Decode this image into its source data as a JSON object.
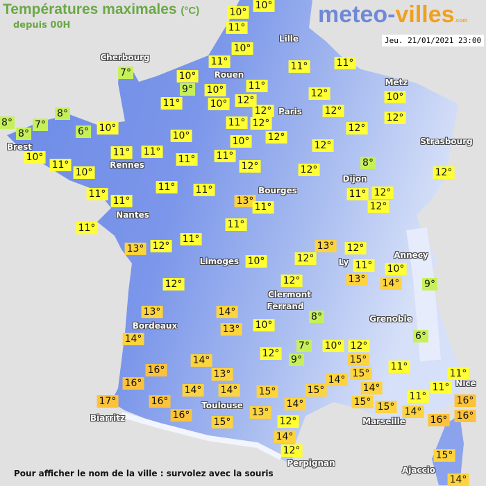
{
  "header": {
    "title": "Températures maximales",
    "unit": "(°C)",
    "subtitle": "depuis 00H",
    "date": "Jeu. 21/01/2021 23:00"
  },
  "logo": {
    "part1": "meteo-",
    "part2": "villes",
    "part3": ".com"
  },
  "footer": "Pour afficher le nom de la ville : survolez avec la souris",
  "colors": {
    "cold": "#c6f05a",
    "mild": "#ffff33",
    "warm": "#fdd33e",
    "hot": "#fcc23a",
    "land_west": "#6d8be6",
    "land_east": "#c9d6f5",
    "sea": "#e2e1e1"
  },
  "cities": [
    "Cherbourg",
    "Rouen",
    "Lille",
    "Paris",
    "Metz",
    "Strasbourg",
    "Brest",
    "Rennes",
    "Dijon",
    "Bourges",
    "Nantes",
    "Limoges",
    "Annecy",
    "Ly",
    "Clermont",
    "Ferrand",
    "Grenoble",
    "Bordeaux",
    "Toulouse",
    "Biarritz",
    "Marseille",
    "Nice",
    "Perpignan",
    "Ajaccio"
  ],
  "temps": [
    {
      "label": "10°",
      "value": 10
    },
    {
      "label": "10°",
      "value": 10
    },
    {
      "label": "11°",
      "value": 11
    },
    {
      "label": "10°",
      "value": 10
    },
    {
      "label": "11°",
      "value": 11
    },
    {
      "label": "10°",
      "value": 10
    },
    {
      "label": "9°",
      "value": 9
    },
    {
      "label": "11°",
      "value": 11
    },
    {
      "label": "10°",
      "value": 10
    },
    {
      "label": "10°",
      "value": 10
    },
    {
      "label": "11°",
      "value": 11
    },
    {
      "label": "12°",
      "value": 12
    },
    {
      "label": "12°",
      "value": 12
    },
    {
      "label": "11°",
      "value": 11
    },
    {
      "label": "12°",
      "value": 12
    },
    {
      "label": "12°",
      "value": 12
    },
    {
      "label": "10°",
      "value": 10
    },
    {
      "label": "11°",
      "value": 11
    },
    {
      "label": "12°",
      "value": 12
    },
    {
      "label": "11°",
      "value": 11
    },
    {
      "label": "11°",
      "value": 11
    },
    {
      "label": "12°",
      "value": 12
    },
    {
      "label": "12°",
      "value": 12
    },
    {
      "label": "12°",
      "value": 12
    },
    {
      "label": "12°",
      "value": 12
    },
    {
      "label": "12°",
      "value": 12
    },
    {
      "label": "10°",
      "value": 10
    },
    {
      "label": "12°",
      "value": 12
    },
    {
      "label": "8°",
      "value": 8
    },
    {
      "label": "12°",
      "value": 12
    },
    {
      "label": "11°",
      "value": 11
    },
    {
      "label": "12°",
      "value": 12
    },
    {
      "label": "12°",
      "value": 12
    },
    {
      "label": "13°",
      "value": 13
    },
    {
      "label": "11°",
      "value": 11
    },
    {
      "label": "11°",
      "value": 11
    },
    {
      "label": "11°",
      "value": 11
    },
    {
      "label": "11°",
      "value": 11
    },
    {
      "label": "10°",
      "value": 10
    },
    {
      "label": "11°",
      "value": 11
    },
    {
      "label": "11°",
      "value": 11
    },
    {
      "label": "11°",
      "value": 11
    },
    {
      "label": "11°",
      "value": 11
    },
    {
      "label": "10°",
      "value": 10
    },
    {
      "label": "11°",
      "value": 11
    },
    {
      "label": "11°",
      "value": 11
    },
    {
      "label": "11°",
      "value": 11
    },
    {
      "label": "10°",
      "value": 10
    },
    {
      "label": "6°",
      "value": 6
    },
    {
      "label": "10°",
      "value": 10
    },
    {
      "label": "8°",
      "value": 8
    },
    {
      "label": "8°",
      "value": 8
    },
    {
      "label": "8°",
      "value": 8
    },
    {
      "label": "7°",
      "value": 7
    },
    {
      "label": "7°",
      "value": 7
    },
    {
      "label": "13°",
      "value": 13
    },
    {
      "label": "12°",
      "value": 12
    },
    {
      "label": "11°",
      "value": 11
    },
    {
      "label": "12°",
      "value": 12
    },
    {
      "label": "13°",
      "value": 13
    },
    {
      "label": "14°",
      "value": 14
    },
    {
      "label": "16°",
      "value": 16
    },
    {
      "label": "16°",
      "value": 16
    },
    {
      "label": "17°",
      "value": 17
    },
    {
      "label": "16°",
      "value": 16
    },
    {
      "label": "16°",
      "value": 16
    },
    {
      "label": "14°",
      "value": 14
    },
    {
      "label": "13°",
      "value": 13
    },
    {
      "label": "14°",
      "value": 14
    },
    {
      "label": "14°",
      "value": 14
    },
    {
      "label": "15°",
      "value": 15
    },
    {
      "label": "14°",
      "value": 14
    },
    {
      "label": "13°",
      "value": 13
    },
    {
      "label": "10°",
      "value": 10
    },
    {
      "label": "12°",
      "value": 12
    },
    {
      "label": "10°",
      "value": 10
    },
    {
      "label": "12°",
      "value": 12
    },
    {
      "label": "13°",
      "value": 13
    },
    {
      "label": "12°",
      "value": 12
    },
    {
      "label": "12°",
      "value": 12
    },
    {
      "label": "11°",
      "value": 11
    },
    {
      "label": "13°",
      "value": 13
    },
    {
      "label": "8°",
      "value": 8
    },
    {
      "label": "7°",
      "value": 7
    },
    {
      "label": "9°",
      "value": 9
    },
    {
      "label": "10°",
      "value": 10
    },
    {
      "label": "12°",
      "value": 12
    },
    {
      "label": "15°",
      "value": 15
    },
    {
      "label": "15°",
      "value": 15
    },
    {
      "label": "14°",
      "value": 14
    },
    {
      "label": "14°",
      "value": 14
    },
    {
      "label": "15°",
      "value": 15
    },
    {
      "label": "15°",
      "value": 15
    },
    {
      "label": "15°",
      "value": 15
    },
    {
      "label": "15°",
      "value": 15
    },
    {
      "label": "13°",
      "value": 13
    },
    {
      "label": "14°",
      "value": 14
    },
    {
      "label": "12°",
      "value": 12
    },
    {
      "label": "14°",
      "value": 14
    },
    {
      "label": "12°",
      "value": 12
    },
    {
      "label": "10°",
      "value": 10
    },
    {
      "label": "14°",
      "value": 14
    },
    {
      "label": "9°",
      "value": 9
    },
    {
      "label": "6°",
      "value": 6
    },
    {
      "label": "11°",
      "value": 11
    },
    {
      "label": "11°",
      "value": 11
    },
    {
      "label": "11°",
      "value": 11
    },
    {
      "label": "11°",
      "value": 11
    },
    {
      "label": "14°",
      "value": 14
    },
    {
      "label": "16°",
      "value": 16
    },
    {
      "label": "16°",
      "value": 16
    },
    {
      "label": "16°",
      "value": 16
    },
    {
      "label": "15°",
      "value": 15
    },
    {
      "label": "14°",
      "value": 14
    }
  ]
}
